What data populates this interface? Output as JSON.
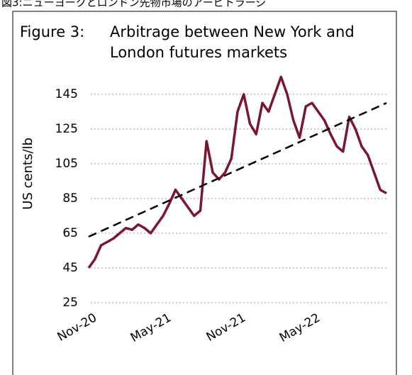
{
  "caption": "図3:ニューヨークとロンドン先物市場のアービトラージ",
  "chart_data": {
    "type": "line",
    "title_number": "Figure 3:",
    "title_lines": [
      "Arbitrage between New York and",
      "London futures markets"
    ],
    "ylabel": "US cents/lb",
    "series": [
      {
        "color": "#7a1730",
        "values": [
          45,
          50,
          58,
          60,
          62,
          65,
          68,
          67,
          70,
          68,
          65,
          70,
          75,
          82,
          90,
          85,
          80,
          75,
          78,
          118,
          100,
          96,
          100,
          108,
          135,
          145,
          128,
          122,
          140,
          135,
          145,
          155,
          145,
          130,
          120,
          138,
          140,
          135,
          130,
          122,
          115,
          112,
          132,
          125,
          115,
          110,
          100,
          90,
          88
        ]
      }
    ],
    "trend": {
      "color": "#000000",
      "values": [
        63,
        140
      ]
    },
    "xlim": [
      0,
      48
    ],
    "xticks": [
      {
        "value": 0,
        "label": "Nov-20"
      },
      {
        "value": 12,
        "label": "May-21"
      },
      {
        "value": 24,
        "label": "Nov-21"
      },
      {
        "value": 36,
        "label": "May-22"
      }
    ],
    "ylim": [
      25,
      155
    ],
    "yticks": [
      25,
      45,
      65,
      85,
      105,
      125,
      145
    ],
    "grid": true
  }
}
